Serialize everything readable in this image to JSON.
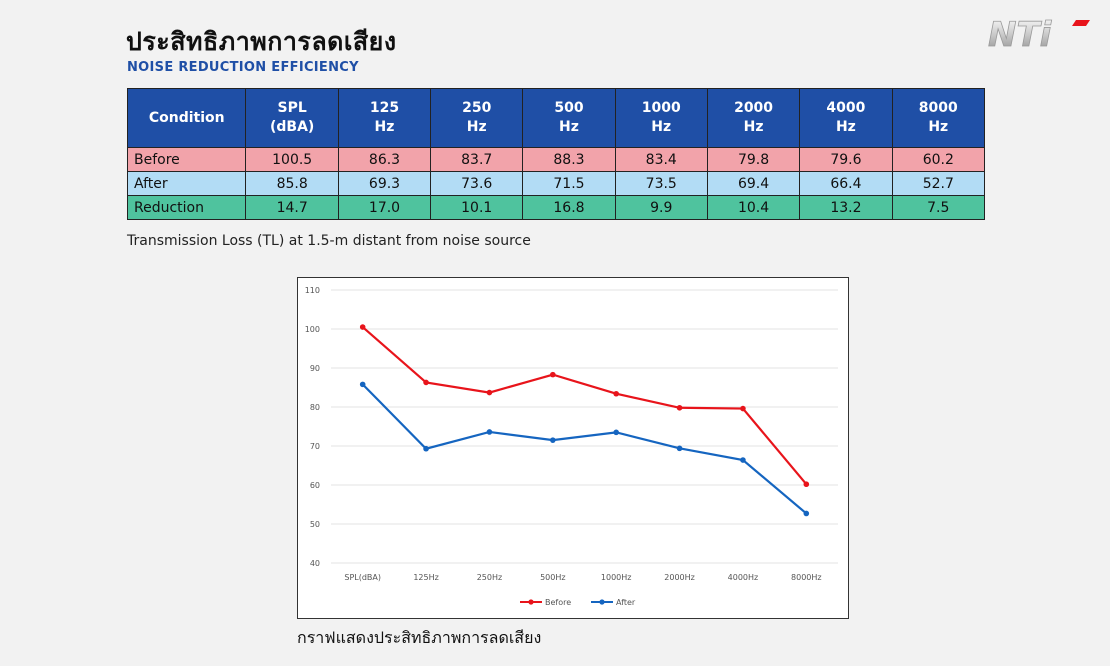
{
  "header": {
    "title_th": "ประสิทธิภาพการลดเสียง",
    "title_en": "NOISE REDUCTION EFFICIENCY",
    "logo_text": "NTi"
  },
  "table": {
    "columns": [
      "Condition",
      "SPL\n(dBA)",
      "125\nHz",
      "250\nHz",
      "500\nHz",
      "1000\nHz",
      "2000\nHz",
      "4000\nHz",
      "8000\nHz"
    ],
    "rows": [
      {
        "label": "Before",
        "values": [
          "100.5",
          "86.3",
          "83.7",
          "88.3",
          "83.4",
          "79.8",
          "79.6",
          "60.2"
        ]
      },
      {
        "label": "After",
        "values": [
          "85.8",
          "69.3",
          "73.6",
          "71.5",
          "73.5",
          "69.4",
          "66.4",
          "52.7"
        ]
      },
      {
        "label": "Reduction",
        "values": [
          "14.7",
          "17.0",
          "10.1",
          "16.8",
          "9.9",
          "10.4",
          "13.2",
          "7.5"
        ]
      }
    ]
  },
  "note": "Transmission Loss (TL) at 1.5-m distant from noise source",
  "caption": "กราฟแสดงประสิทธิภาพการลดเสียง",
  "chart_data": {
    "type": "line",
    "categories": [
      "SPL(dBA)",
      "125Hz",
      "250Hz",
      "500Hz",
      "1000Hz",
      "2000Hz",
      "4000Hz",
      "8000Hz"
    ],
    "series": [
      {
        "name": "Before",
        "color": "#e8141b",
        "values": [
          100.5,
          86.3,
          83.7,
          88.3,
          83.4,
          79.8,
          79.6,
          60.2
        ]
      },
      {
        "name": "After",
        "color": "#1565c0",
        "values": [
          85.8,
          69.3,
          73.6,
          71.5,
          73.5,
          69.4,
          66.4,
          52.7
        ]
      }
    ],
    "ylim": [
      40,
      110
    ],
    "yticks": [
      40,
      50,
      60,
      70,
      80,
      90,
      100,
      110
    ],
    "grid": true,
    "legend": "bottom-center",
    "title": "",
    "xlabel": "",
    "ylabel": ""
  }
}
